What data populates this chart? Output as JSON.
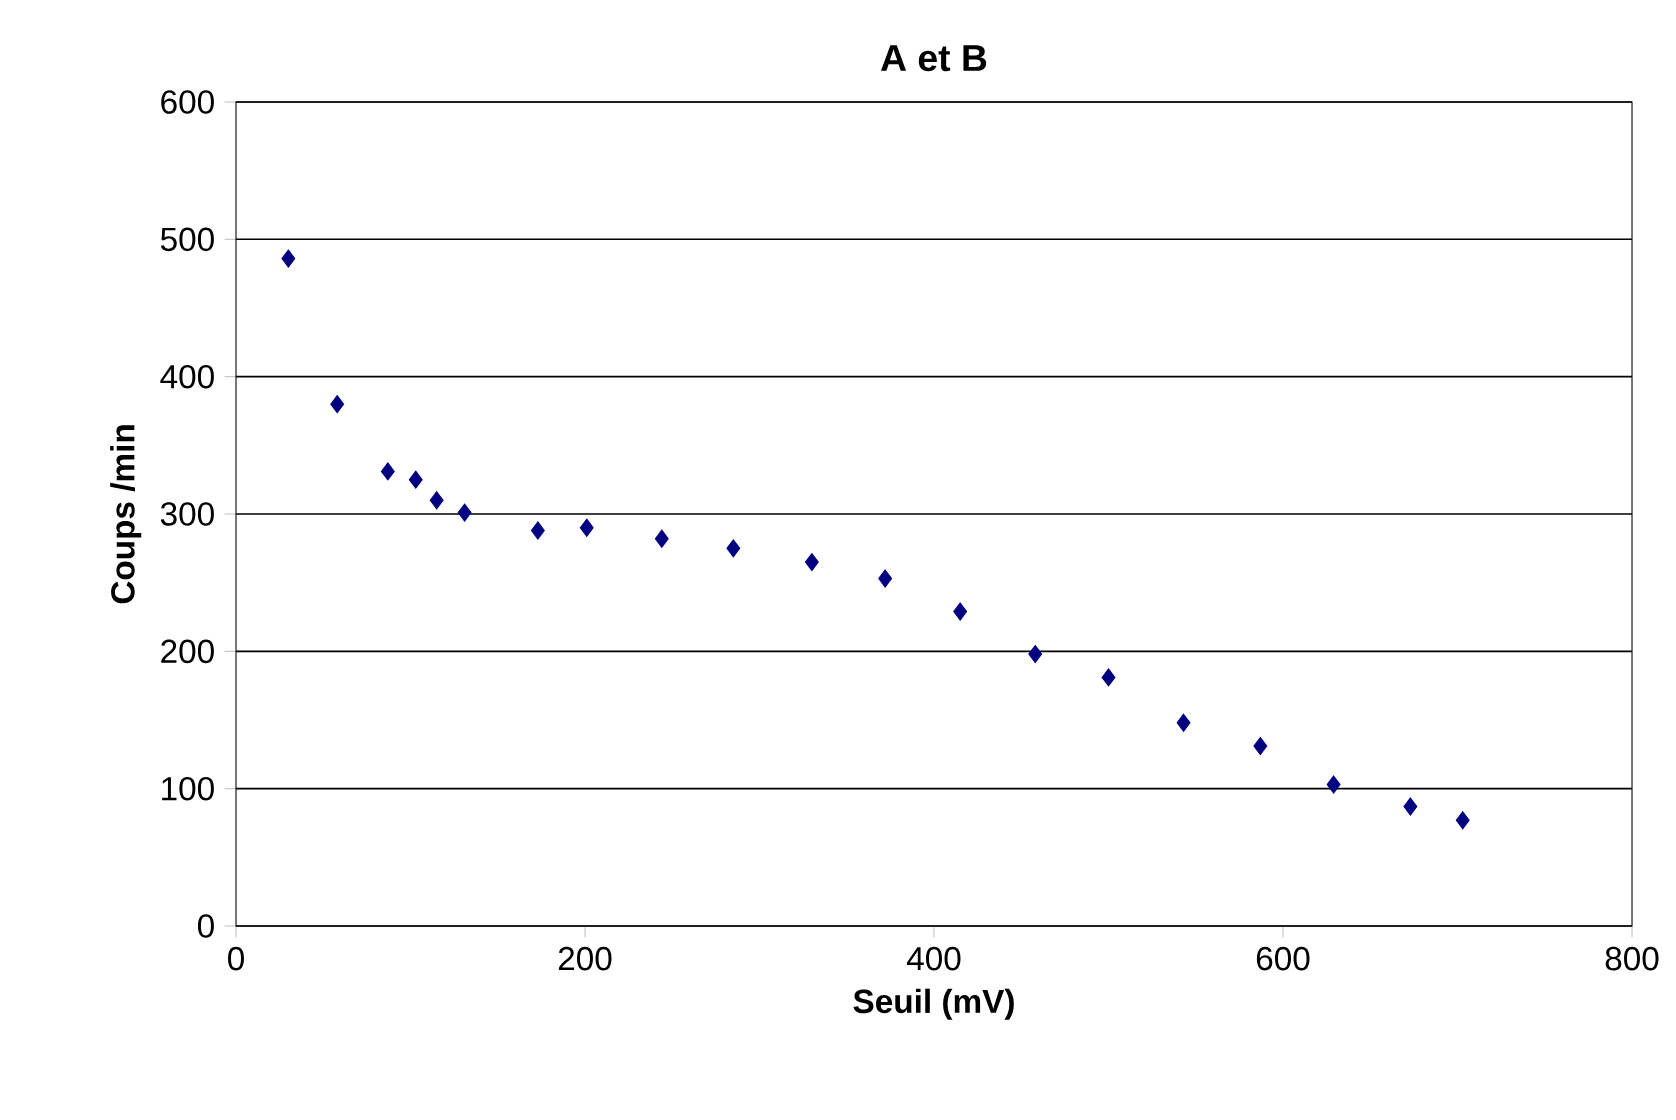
{
  "chart_data": {
    "type": "scatter",
    "title": "A et B",
    "xlabel": "Seuil (mV)",
    "ylabel": "Coups /min",
    "x": [
      30,
      58,
      87,
      103,
      115,
      131,
      173,
      201,
      244,
      285,
      330,
      372,
      415,
      458,
      500,
      543,
      587,
      629,
      673,
      703
    ],
    "series": [
      {
        "color": "#000080",
        "values": [
          486,
          380,
          331,
          325,
          310,
          301,
          288,
          290,
          282,
          275,
          265,
          253,
          229,
          198,
          181,
          148,
          131,
          103,
          87,
          77
        ]
      }
    ],
    "xlim": [
      0,
      800
    ],
    "xticks": [
      0,
      200,
      400,
      600,
      800
    ],
    "ylim": [
      0,
      600
    ],
    "yticks": [
      0,
      100,
      200,
      300,
      400,
      500,
      600
    ],
    "grid": "y",
    "marker": "diamond"
  }
}
